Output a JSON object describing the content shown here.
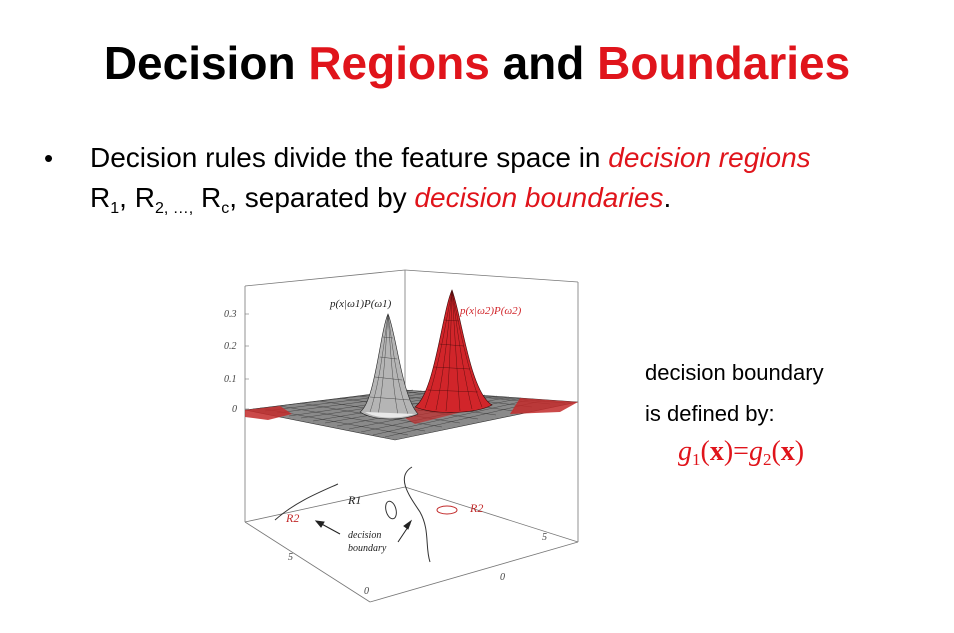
{
  "title": {
    "part1": "Decision",
    "part2": "Regions",
    "part3": "and",
    "part4": "Boundaries"
  },
  "bullet": {
    "line1_plain": "Decision rules divide the feature space in",
    "line1_em": "decision regions",
    "r_letter": "R",
    "sub1": "1",
    "sep1": ", ",
    "sub2": "2, …,",
    "sep2": " ",
    "subc": "c",
    "line2_plain": ", separated by",
    "line2_em": "decision boundaries",
    "line2_end": "."
  },
  "side": {
    "line1": "decision boundary",
    "line2": "is defined by:"
  },
  "formula": {
    "g": "g",
    "sub1": "1",
    "x_open": "(",
    "x": "x",
    "x_close": ")",
    "eq": "=",
    "sub2": "2"
  },
  "plot": {
    "z_ticks": [
      "0.3",
      "0.2",
      "0.1",
      "0"
    ],
    "label_class1": "p(x|ω1)P(ω1)",
    "label_class2": "p(x|ω2)P(ω2)",
    "region_R1": "R1",
    "region_R2_left": "R2",
    "region_R2_right": "R2",
    "boundary_label_1": "decision",
    "boundary_label_2": "boundary",
    "tick_5_left": "5",
    "tick_0_front": "0",
    "tick_0_right": "0",
    "tick_5_right": "5",
    "colors": {
      "class1": "#9a9a9a",
      "class2": "#d1252a",
      "region_red": "#c22a2a"
    }
  }
}
